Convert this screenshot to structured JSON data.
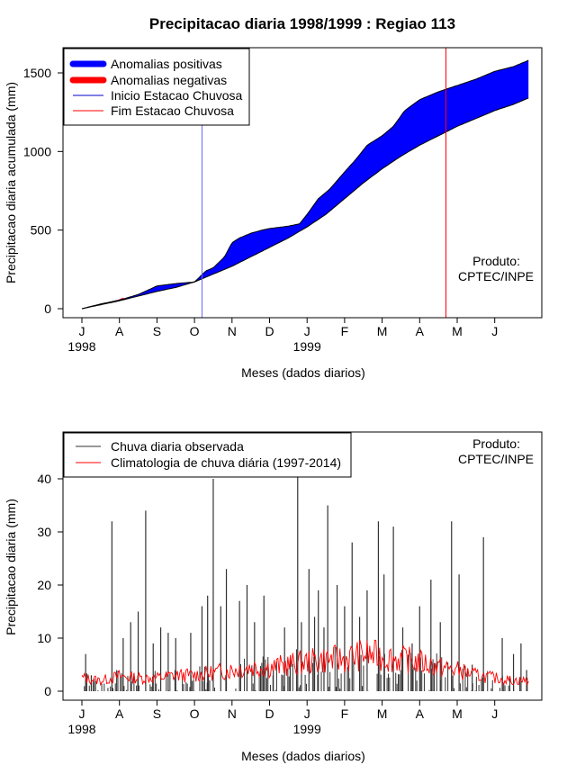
{
  "chart_data": [
    {
      "type": "area",
      "title": "Precipitacao diaria 1998/1999 : Regiao 113",
      "xlabel": "Meses (dados diarios)",
      "ylabel": "Precipitacao diaria acumulada (mm)",
      "x_month_ticks": [
        "J",
        "A",
        "S",
        "O",
        "N",
        "D",
        "J",
        "F",
        "M",
        "A",
        "M",
        "J"
      ],
      "x_year_labels": [
        "1998",
        "1999"
      ],
      "y_ticks": [
        0,
        500,
        1000,
        1500
      ],
      "ylim": [
        -60,
        1650
      ],
      "legend": [
        "Anomalias positivas",
        "Anomalias negativas",
        "Inicio Estacao Chuvosa",
        "Fim Estacao Chuvosa"
      ],
      "legend_position": "top-left",
      "annotation": [
        "Produto:",
        "CPTEC/INPE"
      ],
      "colors": {
        "positive": "#0000ff",
        "negative": "#ff0000",
        "onset": "#6666ff",
        "end": "#ff0000"
      },
      "rainy_season_start_month": 3.2,
      "rainy_season_end_month": 9.7,
      "series": [
        {
          "name": "Observada acumulada",
          "x": [
            0,
            0.5,
            1,
            1.5,
            2,
            2.5,
            3,
            3.3,
            3.5,
            3.8,
            4,
            4.2,
            4.5,
            4.8,
            5,
            5.5,
            5.8,
            6,
            6.3,
            6.6,
            7,
            7.3,
            7.6,
            8,
            8.3,
            8.6,
            9,
            9.5,
            10,
            10.5,
            11,
            11.5,
            11.9
          ],
          "values": [
            0,
            30,
            55,
            90,
            145,
            160,
            170,
            240,
            260,
            330,
            420,
            450,
            480,
            500,
            510,
            525,
            540,
            600,
            700,
            760,
            870,
            950,
            1040,
            1100,
            1160,
            1260,
            1330,
            1380,
            1420,
            1460,
            1510,
            1540,
            1580
          ]
        },
        {
          "name": "Climatologia acumulada",
          "x": [
            0,
            0.5,
            1,
            1.5,
            2,
            2.5,
            3,
            3.5,
            4,
            4.5,
            5,
            5.5,
            6,
            6.5,
            7,
            7.5,
            8,
            8.5,
            9,
            9.5,
            10,
            10.5,
            11,
            11.5,
            11.9
          ],
          "values": [
            0,
            25,
            50,
            80,
            110,
            135,
            170,
            220,
            270,
            330,
            390,
            450,
            520,
            600,
            700,
            800,
            890,
            970,
            1040,
            1100,
            1160,
            1210,
            1260,
            1300,
            1340
          ]
        }
      ]
    },
    {
      "type": "bar",
      "title": "",
      "xlabel": "Meses (dados diarios)",
      "ylabel": "Precipitacao diaria (mm)",
      "x_month_ticks": [
        "J",
        "A",
        "S",
        "O",
        "N",
        "D",
        "J",
        "F",
        "M",
        "A",
        "M",
        "J"
      ],
      "x_year_labels": [
        "1998",
        "1999"
      ],
      "y_ticks": [
        0,
        10,
        20,
        30,
        40
      ],
      "ylim": [
        -2,
        48
      ],
      "legend": [
        "Chuva diaria observada",
        "Climatologia de chuva diária (1997-2014)"
      ],
      "legend_position": "top-left",
      "annotation": [
        "Produto:",
        "CPTEC/INPE"
      ],
      "colors": {
        "observed": "#333333",
        "climatology": "#ff0000"
      },
      "series": [
        {
          "name": "Chuva diaria observada (picos)",
          "x": [
            0.1,
            0.25,
            0.8,
            1.1,
            1.3,
            1.5,
            1.7,
            1.9,
            2.1,
            2.3,
            2.5,
            2.9,
            3.2,
            3.35,
            3.5,
            3.7,
            3.85,
            4.2,
            4.4,
            4.6,
            4.85,
            5.1,
            5.4,
            5.55,
            5.75,
            5.85,
            6.05,
            6.2,
            6.3,
            6.45,
            6.55,
            6.8,
            7.0,
            7.2,
            7.4,
            7.6,
            7.9,
            8.05,
            8.3,
            8.55,
            8.8,
            9.0,
            9.3,
            9.55,
            9.85,
            10.05,
            10.4,
            10.7,
            11.2,
            11.5,
            11.7,
            11.85
          ],
          "values": [
            7,
            3,
            32,
            10,
            13,
            15,
            34,
            9,
            12,
            11,
            10,
            11,
            16,
            18,
            40,
            16,
            23,
            17,
            20,
            13,
            18,
            4,
            12,
            6,
            41,
            13,
            23,
            14,
            19,
            12,
            35,
            20,
            16,
            28,
            14,
            19,
            32,
            22,
            31,
            12,
            9,
            16,
            21,
            13,
            32,
            22,
            5,
            29,
            10,
            7,
            9,
            4
          ]
        },
        {
          "name": "Climatologia de chuva diária (1997-2014)",
          "x": [
            0,
            0.5,
            1,
            1.5,
            2,
            2.5,
            3,
            3.5,
            4,
            4.5,
            5,
            5.5,
            6,
            6.5,
            7,
            7.5,
            8,
            8.5,
            9,
            9.5,
            10,
            10.5,
            11,
            11.5,
            11.9
          ],
          "values": [
            2.5,
            2.0,
            2.8,
            2.5,
            2.5,
            3.0,
            3.0,
            3.5,
            4.0,
            4.5,
            4.5,
            5.0,
            5.5,
            6.0,
            6.0,
            7.0,
            6.5,
            6.0,
            5.5,
            4.5,
            4.0,
            3.0,
            2.5,
            2.0,
            2.0
          ]
        }
      ]
    }
  ]
}
